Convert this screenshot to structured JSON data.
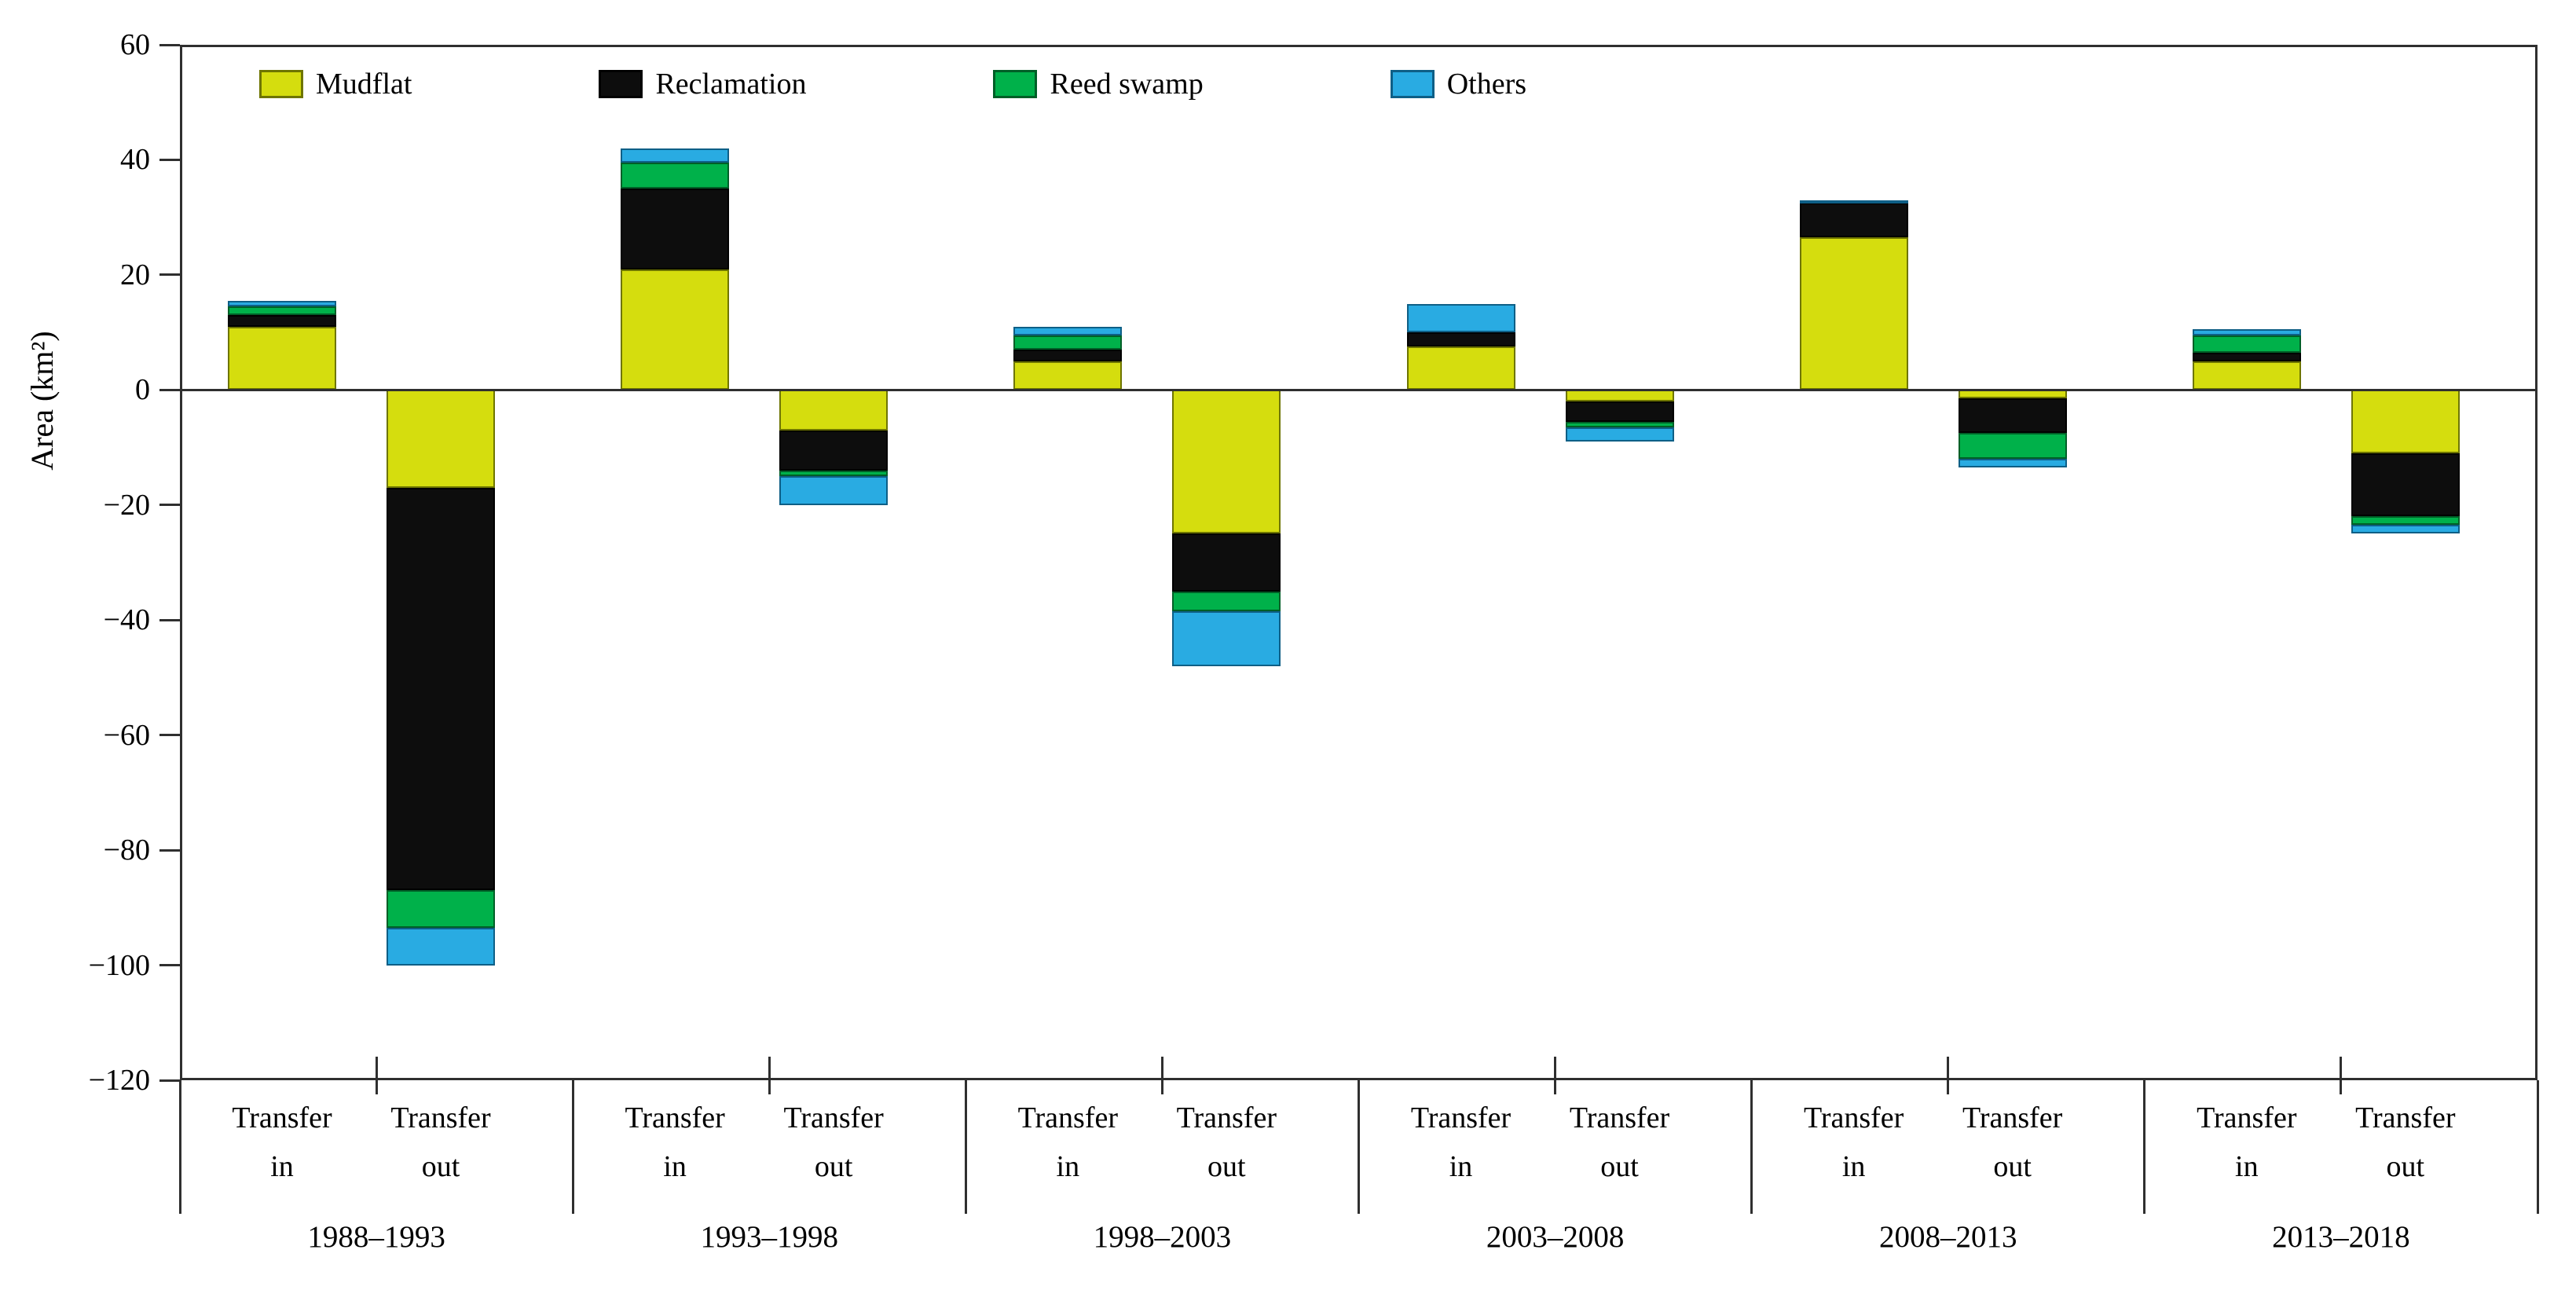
{
  "chart_data": {
    "type": "bar",
    "stacked": true,
    "ylabel": "Area (km²)",
    "ylim": [
      -120,
      60
    ],
    "yticks": [
      60,
      40,
      20,
      0,
      -20,
      -40,
      -60,
      -80,
      -100,
      -120
    ],
    "ytick_labels": [
      "60",
      "40",
      "20",
      "0",
      "−20",
      "−40",
      "−60",
      "−80",
      "−100",
      "−120"
    ],
    "grid": "off",
    "legend_position": "top-left-inside",
    "categories": [
      "1988–1993",
      "1993–1998",
      "1998–2003",
      "2003–2008",
      "2008–2013",
      "2013–2018"
    ],
    "bar_labels": [
      {
        "line1": "Transfer",
        "line2": "in"
      },
      {
        "line1": "Transfer",
        "line2": "out"
      }
    ],
    "series": [
      {
        "name": "Mudflat",
        "color": "#d5dd0e",
        "border_color": "#6e7500",
        "transfer_in": [
          11,
          21,
          5,
          7.5,
          26.5,
          5
        ],
        "transfer_out": [
          -17,
          -7,
          -25,
          -2,
          -1.5,
          -11
        ]
      },
      {
        "name": "Reclamation",
        "color": "#0d0d0d",
        "border_color": "#000000",
        "transfer_in": [
          2,
          14,
          2,
          2.5,
          6,
          1.5
        ],
        "transfer_out": [
          -70,
          -7,
          -10,
          -3.5,
          -6,
          -11
        ]
      },
      {
        "name": "Reed swamp",
        "color": "#00b14a",
        "border_color": "#005f27",
        "transfer_in": [
          1.5,
          4.5,
          2.5,
          0,
          0,
          3
        ],
        "transfer_out": [
          -6.5,
          -1,
          -3.5,
          -1,
          -4.5,
          -1.5
        ]
      },
      {
        "name": "Others",
        "color": "#29abe2",
        "border_color": "#0e5f86",
        "transfer_in": [
          1,
          2.5,
          1.5,
          5,
          0.5,
          1
        ],
        "transfer_out": [
          -6.5,
          -5,
          -9.5,
          -2.5,
          -1.5,
          -1.5
        ]
      }
    ]
  }
}
